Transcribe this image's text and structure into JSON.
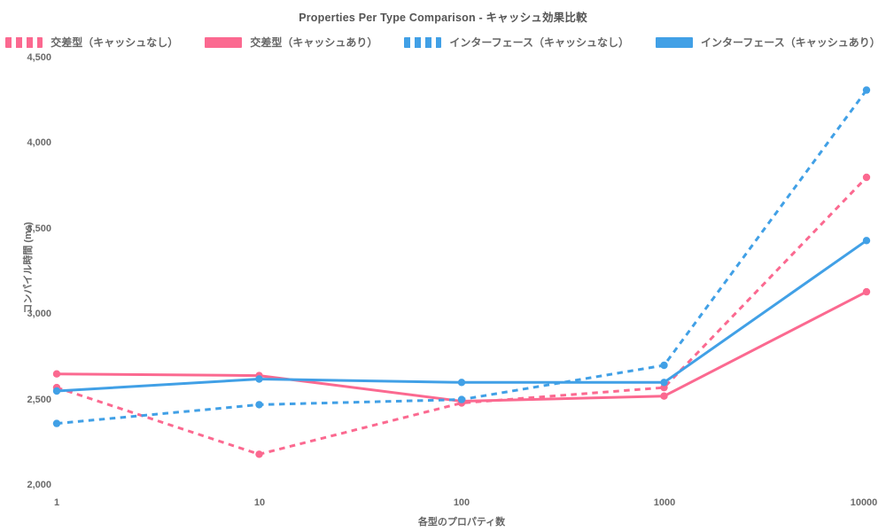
{
  "title": "Properties Per Type Comparison - キャッシュ効果比較",
  "colors": {
    "pink": "#FB6990",
    "blue": "#41A0E6",
    "title_text": "#555555",
    "axis_text": "#6A6A6A",
    "background": "#FFFFFF"
  },
  "chart_data": {
    "type": "line",
    "x_scale": "log",
    "categories": [
      1,
      10,
      100,
      1000,
      10000
    ],
    "xtick_labels": [
      "1",
      "10",
      "100",
      "1000",
      "10000"
    ],
    "ytick_labels": [
      "4,500",
      "4,000",
      "3,500",
      "3,000",
      "2,500",
      "2,000"
    ],
    "ylim": [
      2000,
      4500
    ],
    "ytick_step": 500,
    "xlabel": "各型のプロパティ数",
    "ylabel": "コンパイル時間 (ms)",
    "grid": false,
    "legend_position": "top",
    "marker": "circle",
    "series": [
      {
        "name": "交差型（キャッシュなし）",
        "color": "#FB6990",
        "style": "dashed",
        "values": [
          2570,
          2180,
          2480,
          2570,
          3800
        ]
      },
      {
        "name": "交差型（キャッシュあり）",
        "color": "#FB6990",
        "style": "solid",
        "values": [
          2650,
          2640,
          2490,
          2520,
          3130
        ]
      },
      {
        "name": "インターフェース（キャッシュなし）",
        "color": "#41A0E6",
        "style": "dashed",
        "values": [
          2360,
          2470,
          2500,
          2700,
          4310
        ]
      },
      {
        "name": "インターフェース（キャッシュあり）",
        "color": "#41A0E6",
        "style": "solid",
        "values": [
          2550,
          2620,
          2600,
          2600,
          3430
        ]
      }
    ]
  }
}
